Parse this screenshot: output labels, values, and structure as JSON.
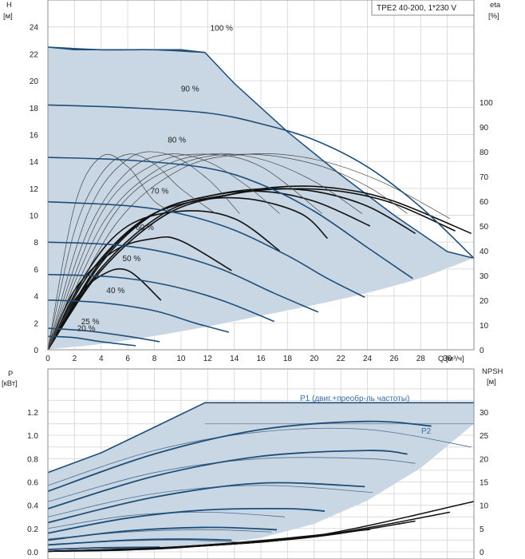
{
  "title_box": "TPE2 40-200, 1*230 V",
  "colors": {
    "envelope": "#c9d6e3",
    "curve": "#1f4e79",
    "border": "#8c8c8c",
    "grid": "#dcdcdc",
    "black": "#111111"
  },
  "top": {
    "y_axis": {
      "label": "H",
      "unit": "[м]",
      "ticks": [
        0,
        2,
        4,
        6,
        8,
        10,
        12,
        14,
        16,
        18,
        20,
        22,
        24
      ]
    },
    "eta_axis": {
      "label": "eta",
      "unit": "[%]",
      "ticks": [
        0,
        10,
        20,
        30,
        40,
        50,
        60,
        70,
        80,
        90,
        100
      ]
    },
    "x_axis": {
      "unit": "Q [м³/ч]",
      "ticks": [
        0,
        2,
        4,
        6,
        8,
        10,
        12,
        14,
        16,
        18,
        20,
        22,
        24,
        26,
        28,
        30
      ]
    },
    "speed_labels": [
      "100 %",
      "90 %",
      "80 %",
      "70 %",
      "60 %",
      "50 %",
      "40 %",
      "25 %",
      "20 %"
    ]
  },
  "bottom": {
    "y_axis": {
      "label": "P",
      "unit": "[кВт]",
      "ticks": [
        "0.0",
        "0.2",
        "0.4",
        "0.6",
        "0.8",
        "1.0",
        "1.2"
      ]
    },
    "npsh_axis": {
      "label": "NPSH",
      "unit": "[м]",
      "ticks": [
        0,
        5,
        10,
        15,
        20,
        25,
        30
      ]
    },
    "p1_label": "P1 (двиг.+преобр-ль частоты)",
    "p2_label": "P2"
  },
  "chart_data": [
    {
      "type": "line",
      "title": "TPE2 40-200, 1*230 V",
      "xlabel": "Q [м³/ч]",
      "ylabel": "H [м]",
      "y2label": "eta [%]",
      "xlim": [
        0,
        32
      ],
      "ylim": [
        0,
        26
      ],
      "y2lim": [
        0,
        100
      ],
      "grid": true,
      "envelope": {
        "upper_x": [
          0,
          2,
          4,
          6,
          8,
          10,
          11.8,
          14,
          18,
          22,
          26,
          30,
          32
        ],
        "upper_y": [
          22.5,
          22.3,
          22.3,
          22.3,
          22.3,
          22.3,
          22.1,
          19.8,
          16.2,
          13.0,
          10.0,
          7.3,
          6.8
        ],
        "lower_x": [
          0,
          4,
          8,
          12,
          16,
          20,
          24,
          28,
          32
        ],
        "lower_y": [
          0,
          0.4,
          1.0,
          1.7,
          2.5,
          3.3,
          4.2,
          5.3,
          6.8
        ]
      },
      "series": [
        {
          "name": "100 %",
          "x": [
            0,
            4,
            8,
            11.8
          ],
          "y": [
            22.5,
            22.3,
            22.3,
            22.1
          ]
        },
        {
          "name": "90 %",
          "x": [
            0,
            6,
            12,
            16,
            20,
            24,
            28,
            32
          ],
          "y": [
            18.2,
            18.0,
            17.6,
            16.8,
            15.6,
            13.6,
            10.6,
            6.8
          ]
        },
        {
          "name": "80 %",
          "x": [
            0,
            6,
            12,
            16,
            20,
            24,
            27.4
          ],
          "y": [
            14.3,
            14.1,
            13.5,
            12.3,
            10.3,
            7.6,
            5.3
          ]
        },
        {
          "name": "70 %",
          "x": [
            0,
            6,
            10,
            14,
            18,
            21,
            23.8
          ],
          "y": [
            11.0,
            10.7,
            10.1,
            8.9,
            7.0,
            5.3,
            3.9
          ]
        },
        {
          "name": "60 %",
          "x": [
            0,
            5,
            9,
            13,
            17,
            20.3
          ],
          "y": [
            8.0,
            7.8,
            7.2,
            6.0,
            4.2,
            2.8
          ]
        },
        {
          "name": "50 %",
          "x": [
            0,
            5,
            9,
            13,
            17
          ],
          "y": [
            5.6,
            5.4,
            4.8,
            3.7,
            2.1
          ]
        },
        {
          "name": "40 %",
          "x": [
            0,
            4,
            8,
            11,
            13.6
          ],
          "y": [
            3.7,
            3.5,
            2.9,
            2.0,
            1.3
          ]
        },
        {
          "name": "25 %",
          "x": [
            0,
            3,
            6,
            8.4
          ],
          "y": [
            1.6,
            1.4,
            1.0,
            0.6
          ]
        },
        {
          "name": "20 %",
          "x": [
            0,
            2,
            4,
            6.6
          ],
          "y": [
            1.0,
            0.9,
            0.6,
            0.3
          ]
        }
      ],
      "efficiency_curves": [
        {
          "x": [
            0,
            2,
            4,
            6,
            8.5
          ],
          "eta": [
            0,
            20,
            30,
            32,
            20
          ]
        },
        {
          "x": [
            0,
            2,
            5,
            8,
            10,
            13.8
          ],
          "eta": [
            0,
            24,
            40,
            45,
            44,
            32
          ]
        },
        {
          "x": [
            0,
            3,
            6,
            10,
            14,
            17.4
          ],
          "eta": [
            0,
            32,
            50,
            56,
            53,
            40
          ]
        },
        {
          "x": [
            0,
            3,
            7,
            11,
            15,
            19,
            21
          ],
          "eta": [
            0,
            30,
            52,
            60,
            61,
            55,
            45
          ]
        },
        {
          "x": [
            0,
            4,
            8,
            12,
            16,
            20,
            24.2
          ],
          "eta": [
            0,
            36,
            55,
            62,
            64,
            60,
            50
          ]
        },
        {
          "x": [
            0,
            4,
            8,
            12,
            16,
            20,
            24,
            27.6
          ],
          "eta": [
            0,
            35,
            55,
            62,
            65,
            64,
            58,
            47
          ]
        },
        {
          "x": [
            0,
            4,
            9,
            14,
            18,
            22,
            26,
            30.6
          ],
          "eta": [
            0,
            33,
            56,
            63,
            65,
            64,
            59,
            48
          ]
        },
        {
          "x": [
            0,
            4,
            9,
            14,
            18,
            22,
            26,
            31.8
          ],
          "eta": [
            0,
            32,
            55,
            63,
            66,
            65,
            60,
            47
          ]
        },
        {
          "x": [
            0,
            2,
            4,
            6,
            8,
            9.8
          ],
          "eta": [
            0,
            58,
            78,
            74,
            60,
            55
          ]
        },
        {
          "x": [
            0,
            2,
            4,
            6,
            8,
            10,
            12.6
          ],
          "eta": [
            0,
            48,
            71,
            79,
            75,
            65,
            55
          ]
        },
        {
          "x": [
            0,
            3,
            6,
            9,
            12,
            14.4
          ],
          "eta": [
            0,
            55,
            77,
            79,
            69,
            55
          ]
        },
        {
          "x": [
            0,
            3,
            6,
            9,
            12,
            15,
            17.4
          ],
          "eta": [
            0,
            48,
            72,
            79,
            76,
            66,
            55
          ]
        },
        {
          "x": [
            0,
            4,
            8,
            12,
            16,
            20.6
          ],
          "eta": [
            0,
            55,
            75,
            79,
            74,
            55
          ]
        },
        {
          "x": [
            0,
            4,
            8,
            12,
            16,
            20,
            23.6
          ],
          "eta": [
            0,
            50,
            72,
            79,
            77,
            68,
            55
          ]
        },
        {
          "x": [
            0,
            5,
            10,
            15,
            20,
            24,
            27
          ],
          "eta": [
            0,
            55,
            75,
            79,
            75,
            66,
            55
          ]
        },
        {
          "x": [
            0,
            5,
            10,
            15,
            20,
            25,
            30.2
          ],
          "eta": [
            0,
            50,
            73,
            79,
            77,
            68,
            53
          ]
        }
      ]
    },
    {
      "type": "line",
      "xlabel": "Q [м³/ч]",
      "ylabel": "P [кВт]",
      "y2label": "NPSH [м]",
      "xlim": [
        0,
        32
      ],
      "ylim": [
        0,
        1.4
      ],
      "y2lim": [
        0,
        35
      ],
      "grid": true,
      "envelope": {
        "upper_x": [
          0,
          4,
          8,
          11.8,
          20,
          26,
          32
        ],
        "upper_y": [
          0.68,
          0.85,
          1.07,
          1.28,
          1.28,
          1.28,
          1.28
        ],
        "lower_x": [
          0,
          8,
          12,
          16,
          20,
          24,
          28,
          32
        ],
        "lower_y": [
          0,
          0.02,
          0.06,
          0.12,
          0.24,
          0.44,
          0.72,
          1.1
        ]
      },
      "series": [
        {
          "name": "P1 (двиг.+преобр-ль частоты)",
          "x": [
            0,
            8,
            11.8,
            20,
            32
          ],
          "y": [
            0.68,
            1.07,
            1.28,
            1.28,
            1.28
          ]
        },
        {
          "name": "P2",
          "x": [
            11.8,
            32
          ],
          "y": [
            1.1,
            1.1
          ]
        }
      ],
      "power_curves_p1": [
        {
          "x": [
            0,
            8,
            16,
            24,
            28.8
          ],
          "y": [
            0.52,
            0.84,
            1.05,
            1.12,
            1.08
          ]
        },
        {
          "x": [
            0,
            8,
            16,
            24,
            27
          ],
          "y": [
            0.37,
            0.65,
            0.82,
            0.87,
            0.84
          ]
        },
        {
          "x": [
            0,
            8,
            16,
            23.8
          ],
          "y": [
            0.25,
            0.47,
            0.59,
            0.56
          ]
        },
        {
          "x": [
            0,
            6,
            12,
            18,
            20.8
          ],
          "y": [
            0.16,
            0.29,
            0.36,
            0.37,
            0.35
          ]
        },
        {
          "x": [
            0,
            6,
            12,
            17.2
          ],
          "y": [
            0.1,
            0.18,
            0.21,
            0.19
          ]
        },
        {
          "x": [
            0,
            6,
            10,
            13.8
          ],
          "y": [
            0.06,
            0.1,
            0.11,
            0.1
          ]
        },
        {
          "x": [
            0,
            4,
            8.4
          ],
          "y": [
            0.02,
            0.035,
            0.04
          ]
        }
      ],
      "power_curves_p2": [
        {
          "x": [
            0,
            8,
            16,
            24,
            31.8
          ],
          "y": [
            0.57,
            0.87,
            1.03,
            1.05,
            0.9
          ]
        },
        {
          "x": [
            0,
            8,
            16,
            24,
            27.6
          ],
          "y": [
            0.43,
            0.68,
            0.8,
            0.8,
            0.76
          ]
        },
        {
          "x": [
            0,
            8,
            16,
            24.4
          ],
          "y": [
            0.3,
            0.5,
            0.57,
            0.51
          ]
        },
        {
          "x": [
            0,
            6,
            12,
            17.8
          ],
          "y": [
            0.2,
            0.31,
            0.34,
            0.3
          ]
        },
        {
          "x": [
            0,
            6,
            12,
            16.8
          ],
          "y": [
            0.11,
            0.17,
            0.19,
            0.17
          ]
        },
        {
          "x": [
            0,
            5,
            10,
            14.8
          ],
          "y": [
            0.06,
            0.09,
            0.1,
            0.08
          ]
        },
        {
          "x": [
            0,
            4,
            8.6
          ],
          "y": [
            0.02,
            0.03,
            0.025
          ]
        }
      ],
      "npsh_curves": [
        {
          "x": [
            0,
            6,
            12,
            16.5
          ],
          "npsh": [
            0.1,
            0.4,
            1.5,
            2.4
          ]
        },
        {
          "x": [
            0,
            8,
            14,
            20.4
          ],
          "npsh": [
            0.1,
            0.6,
            1.8,
            3.5
          ]
        },
        {
          "x": [
            0,
            8,
            16,
            24.2
          ],
          "npsh": [
            0.1,
            0.8,
            2.4,
            4.8
          ]
        },
        {
          "x": [
            0,
            10,
            20,
            27.6
          ],
          "npsh": [
            0.1,
            1.0,
            3.2,
            6.6
          ]
        },
        {
          "x": [
            0,
            10,
            20,
            30.2
          ],
          "npsh": [
            0.1,
            1.0,
            3.3,
            8.5
          ]
        },
        {
          "x": [
            0,
            10,
            20,
            32
          ],
          "npsh": [
            0.1,
            1.1,
            3.4,
            10.8
          ]
        }
      ]
    }
  ]
}
